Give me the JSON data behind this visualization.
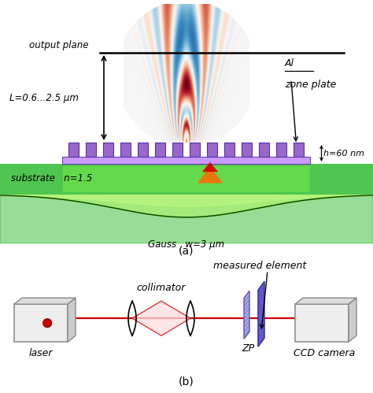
{
  "fig_width": 4.74,
  "fig_height": 4.99,
  "dpi": 100,
  "bg_color": "#ffffff",
  "panel_a_label": "(a)",
  "panel_b_label": "(b)",
  "text_output_plane": "output plane",
  "text_L": "L=0.6...2.5 μm",
  "text_Al": "Al",
  "text_zone_plate": "zone plate",
  "text_h": "h=60 nm",
  "text_substrate": "substrate   n=1.5",
  "text_gauss": "Gauss   w=3 μm",
  "text_laser": "laser",
  "text_collimator": "collimator",
  "text_measured": "measured element",
  "text_ZP": "ZP",
  "text_CCD": "CCD camera",
  "purple_color": "#9966cc",
  "purple_light": "#cc99ff",
  "purple_dark": "#7755bb",
  "green_bright": "#44ff44",
  "green_mid": "#22cc22",
  "green_dark": "#115511",
  "red_color": "#dd0000",
  "orange_color": "#ff6600",
  "blue_color": "#0000dd",
  "box_face": "#eeeeee",
  "box_top": "#dddddd",
  "box_side": "#cccccc",
  "box_edge": "#888888",
  "beam_color": "#cc0000"
}
